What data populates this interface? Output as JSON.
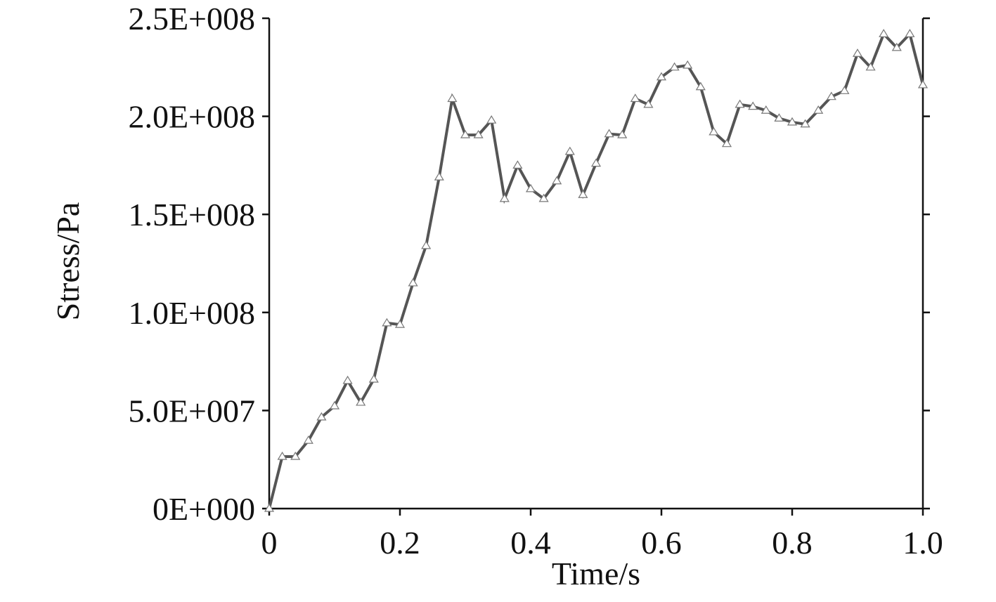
{
  "chart_data": {
    "type": "line",
    "x_label": "Time/s",
    "y_label": "Stress/Pa",
    "x": [
      0,
      0.02,
      0.04,
      0.06,
      0.08,
      0.1,
      0.12,
      0.14,
      0.16,
      0.18,
      0.2,
      0.22,
      0.24,
      0.26,
      0.28,
      0.3,
      0.32,
      0.34,
      0.36,
      0.38,
      0.4,
      0.42,
      0.44,
      0.46,
      0.48,
      0.5,
      0.52,
      0.54,
      0.56,
      0.58,
      0.6,
      0.62,
      0.64,
      0.66,
      0.68,
      0.7,
      0.72,
      0.74,
      0.76,
      0.78,
      0.8,
      0.82,
      0.84,
      0.86,
      0.88,
      0.9,
      0.92,
      0.94,
      0.96,
      0.98,
      1.0
    ],
    "series": [
      {
        "color": "#555555",
        "values": [
          0,
          26500000,
          26500000,
          34700000,
          46600000,
          52300000,
          65200000,
          54100000,
          65900000,
          94600000,
          93800000,
          115000000,
          134000000,
          169000000,
          209000000,
          190500000,
          190500000,
          198000000,
          158000000,
          175000000,
          163000000,
          158000000,
          167000000,
          182000000,
          160000000,
          176000000,
          191000000,
          190500000,
          209000000,
          206000000,
          220000000,
          225000000,
          226000000,
          215000000,
          192000000,
          186000000,
          206000000,
          205000000,
          203000000,
          199000000,
          197000000,
          196000000,
          203000000,
          210000000,
          213000000,
          232000000,
          225000000,
          242000000,
          235000000,
          242000000,
          216000000
        ]
      }
    ],
    "xlim": [
      0,
      1.0
    ],
    "ylim": [
      0,
      250000000
    ],
    "xticks": [
      0,
      0.2,
      0.4,
      0.6,
      0.8,
      {
        "value": 1,
        "label": "1.0"
      }
    ],
    "yticks": [
      {
        "value": 0,
        "label": "0E+000"
      },
      {
        "value": 50000000,
        "label": "5.0E+007"
      },
      {
        "value": 100000000,
        "label": "1.0E+008"
      },
      {
        "value": 150000000,
        "label": "1.5E+008"
      },
      {
        "value": 200000000,
        "label": "2.0E+008"
      },
      {
        "value": 250000000,
        "label": "2.5E+008"
      }
    ]
  }
}
